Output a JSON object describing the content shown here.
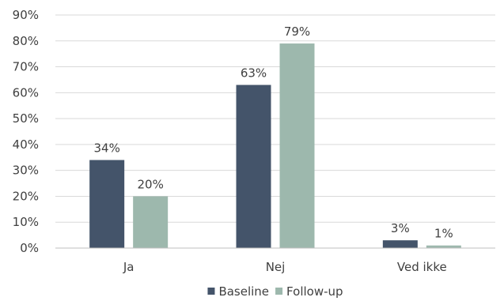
{
  "chart_data": {
    "type": "bar",
    "categories": [
      "Ja",
      "Nej",
      "Ved ikke"
    ],
    "series": [
      {
        "name": "Baseline",
        "values": [
          34,
          63,
          3
        ],
        "labels": [
          "34%",
          "63%",
          "3%"
        ],
        "color": "#44546a"
      },
      {
        "name": "Follow-up",
        "values": [
          20,
          79,
          1
        ],
        "labels": [
          "20%",
          "79%",
          "1%"
        ],
        "color": "#9db8ad"
      }
    ],
    "ylim": [
      0,
      90
    ],
    "yticks": [
      0,
      10,
      20,
      30,
      40,
      50,
      60,
      70,
      80,
      90
    ],
    "ytick_labels": [
      "0%",
      "10%",
      "20%",
      "30%",
      "40%",
      "50%",
      "60%",
      "70%",
      "80%",
      "90%"
    ],
    "grid": true,
    "legend": "bottom-center",
    "colors": {
      "gridline": "#d9d9d9",
      "axis": "#bfbfbf",
      "text": "#404040"
    }
  }
}
